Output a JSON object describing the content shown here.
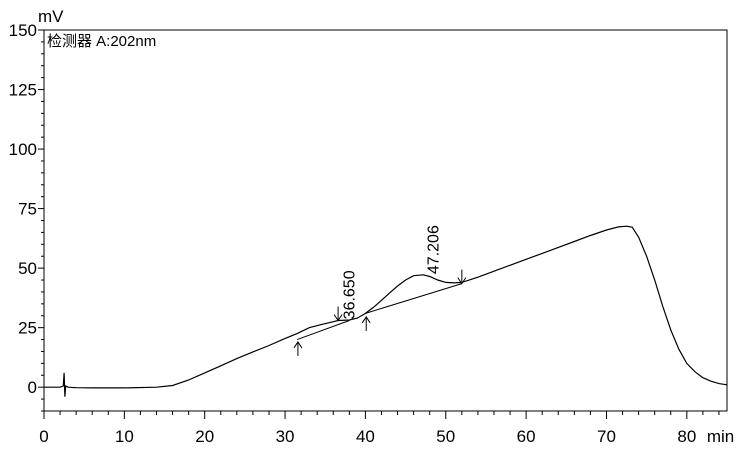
{
  "chart_data": {
    "type": "line",
    "title": "",
    "detector_label": "检测器 A:202nm",
    "xlabel": "min",
    "ylabel": "mV",
    "xlim": [
      0,
      85
    ],
    "ylim": [
      -10,
      150
    ],
    "x_ticks": [
      0,
      10,
      20,
      30,
      40,
      50,
      60,
      70,
      80
    ],
    "x_tick_labels": [
      "0",
      "10",
      "20",
      "30",
      "40",
      "50",
      "60",
      "70",
      "80"
    ],
    "y_ticks": [
      0,
      25,
      50,
      75,
      100,
      125,
      150
    ],
    "y_tick_labels": [
      "0",
      "25",
      "50",
      "75",
      "100",
      "125",
      "150"
    ],
    "grid": false,
    "series": [
      {
        "x": [
          0.0,
          2.0,
          2.4,
          2.5,
          2.6,
          2.7,
          3.0,
          4.0,
          6.0,
          10.0,
          14.0,
          16.0,
          18.0,
          20.0,
          22.0,
          24.0,
          26.0,
          28.0,
          30.0,
          31.5,
          33.0,
          34.5,
          36.0,
          36.6,
          38.0,
          39.0,
          40.0,
          41.0,
          42.0,
          43.0,
          44.0,
          45.0,
          46.0,
          47.2,
          48.0,
          49.0,
          50.0,
          51.0,
          52.0,
          54.0,
          56.0,
          58.0,
          60.0,
          62.0,
          64.0,
          66.0,
          68.0,
          70.0,
          71.5,
          72.5,
          73.2,
          74.0,
          75.0,
          76.0,
          77.0,
          78.0,
          79.0,
          80.0,
          81.0,
          82.0,
          83.0,
          84.0,
          85.0
        ],
        "values": [
          0.0,
          0.0,
          0.5,
          6.0,
          -4.0,
          0.5,
          0.0,
          -0.2,
          -0.3,
          -0.3,
          0.0,
          0.7,
          3.0,
          6.0,
          9.0,
          12.0,
          14.8,
          17.5,
          20.5,
          22.5,
          25.0,
          26.3,
          27.5,
          28.0,
          28.2,
          29.0,
          31.0,
          33.5,
          36.5,
          39.5,
          42.5,
          45.0,
          46.8,
          47.2,
          46.5,
          45.0,
          44.0,
          43.8,
          44.0,
          46.2,
          48.7,
          51.2,
          53.7,
          56.2,
          58.7,
          61.2,
          63.7,
          66.0,
          67.3,
          67.6,
          67.2,
          63.0,
          55.0,
          45.0,
          34.0,
          24.0,
          16.0,
          10.0,
          6.5,
          4.0,
          2.5,
          1.5,
          1.0
        ]
      }
    ],
    "integration_baselines": [
      {
        "x": [
          31.5,
          38.0
        ],
        "values": [
          20.0,
          28.0
        ]
      },
      {
        "x": [
          40.0,
          52.0
        ],
        "values": [
          31.0,
          43.5
        ]
      }
    ],
    "peak_markers": [
      {
        "x": 31.6,
        "y": 19.0,
        "direction": "up"
      },
      {
        "x": 36.6,
        "y": 28.0,
        "direction": "down"
      },
      {
        "x": 40.1,
        "y": 29.5,
        "direction": "up"
      },
      {
        "x": 52.0,
        "y": 43.5,
        "direction": "down"
      }
    ],
    "annotations": [
      {
        "text": "36.650",
        "x": 38.0,
        "y": 28.5
      },
      {
        "text": "47.206",
        "x": 48.5,
        "y": 47.5
      }
    ]
  }
}
